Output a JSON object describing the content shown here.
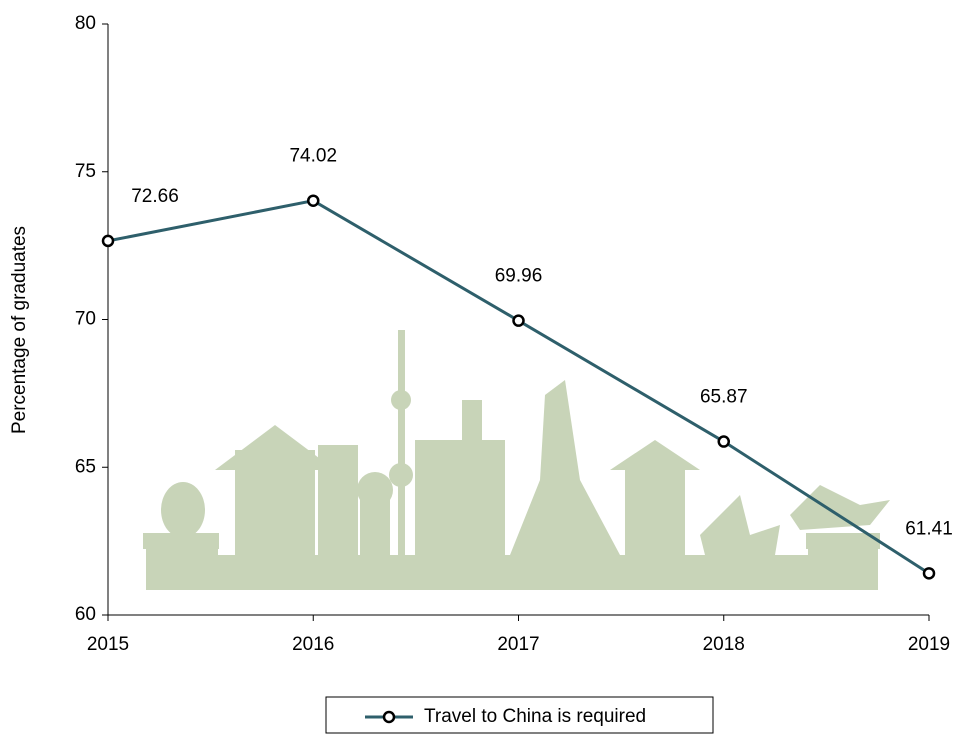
{
  "chart_data": {
    "type": "line",
    "y_label": "Percentage of graduates",
    "categories": [
      "2015",
      "2016",
      "2017",
      "2018",
      "2019"
    ],
    "series": [
      {
        "name": "Travel to China is required",
        "color": "#2e5f6b",
        "values": [
          72.66,
          74.02,
          69.96,
          65.87,
          61.41
        ]
      }
    ],
    "ylim": [
      60,
      80
    ],
    "yticks": [
      60,
      65,
      70,
      75,
      80
    ],
    "legend": "bottom",
    "data_labels": true
  }
}
